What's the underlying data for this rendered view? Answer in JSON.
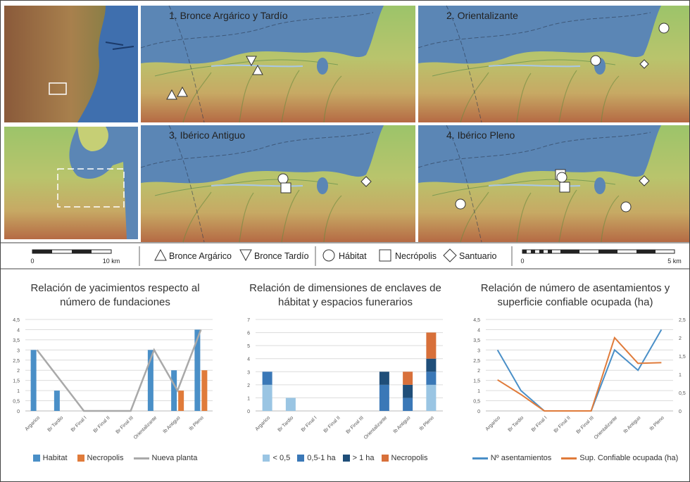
{
  "maps": {
    "panel_titles": [
      "1. Bronce Argárico y Tardío",
      "2. Orientalizante",
      "3. Ibérico Antiguo",
      "4. Ibérico Pleno"
    ],
    "scale_left": {
      "start": "0",
      "end": "10 km"
    },
    "scale_right": {
      "start": "0",
      "end": "5 km"
    },
    "legend": [
      {
        "icon": "triangle-up-icon",
        "label": "Bronce Argárico"
      },
      {
        "icon": "triangle-down-icon",
        "label": "Bronce Tardío"
      },
      {
        "icon": "circle-icon",
        "label": "Hábitat"
      },
      {
        "icon": "square-icon",
        "label": "Necrópolis"
      },
      {
        "icon": "diamond-icon",
        "label": "Santuario"
      }
    ],
    "colors": {
      "sea": "#5b86b5",
      "land_low": "#7fb25c",
      "land_mid": "#c9c06a",
      "land_high": "#b0583a"
    }
  },
  "chart_data": [
    {
      "type": "bar",
      "title": "Relación de yacimientos respecto al número de fundaciones",
      "title_lines": [
        "Relación de yacimientos respecto al",
        "número de fundaciones"
      ],
      "categories": [
        "Argarico",
        "Br Tardio",
        "Br Final I",
        "Br Final II",
        "Br Final III",
        "Orientalizante",
        "Ib Antiguo",
        "Ib Pleno"
      ],
      "ylim": [
        0,
        4.5
      ],
      "yticks": [
        "0",
        "0,5",
        "1",
        "1,5",
        "2",
        "2,5",
        "3",
        "3,5",
        "4",
        "4,5"
      ],
      "series": [
        {
          "name": "Habitat",
          "kind": "bar",
          "color": "#4a8fc7",
          "values": [
            3,
            1,
            0,
            0,
            0,
            3,
            2,
            4
          ]
        },
        {
          "name": "Necropolis",
          "kind": "bar",
          "color": "#e07b3a",
          "values": [
            0,
            0,
            0,
            0,
            0,
            0,
            1,
            2
          ]
        },
        {
          "name": "Nueva planta",
          "kind": "line",
          "color": "#a9a9a9",
          "values": [
            3,
            1.5,
            0,
            0,
            0,
            3,
            1,
            4
          ]
        }
      ]
    },
    {
      "type": "bar",
      "stacked": true,
      "title": "Relación de dimensiones de enclaves de hábitat y espacios funerarios",
      "title_lines": [
        "Relación de dimensiones de enclaves de",
        "hábitat y espacios funerarios"
      ],
      "categories": [
        "Argarico",
        "Br Tardio",
        "Br Final I",
        "Br Final II",
        "Br Final III",
        "Orientalizante",
        "Ib Antiguo",
        "Ib Pleno"
      ],
      "ylim": [
        0,
        7
      ],
      "yticks": [
        "0",
        "1",
        "2",
        "3",
        "4",
        "5",
        "6",
        "7"
      ],
      "series": [
        {
          "name": "< 0,5",
          "color": "#9ac5e3",
          "values": [
            2,
            1,
            0,
            0,
            0,
            0,
            0,
            2
          ]
        },
        {
          "name": "0,5-1 ha",
          "color": "#3a78b7",
          "values": [
            1,
            0,
            0,
            0,
            0,
            2,
            1,
            1
          ]
        },
        {
          "name": "> 1 ha",
          "color": "#1f4e79",
          "values": [
            0,
            0,
            0,
            0,
            0,
            1,
            1,
            1
          ]
        },
        {
          "name": "Necropolis",
          "color": "#d8703a",
          "values": [
            0,
            0,
            0,
            0,
            0,
            0,
            1,
            2
          ]
        }
      ]
    },
    {
      "type": "line",
      "title": "Relación de número de asentamientos y superficie confiable ocupada (ha)",
      "title_lines": [
        "Relación de número de asentamientos y",
        "superficie confiable ocupada (ha)"
      ],
      "categories": [
        "Argarico",
        "Br Tardio",
        "Br Final I",
        "Br Final II",
        "Br Final III",
        "Orientalizante",
        "Ib Antiguo",
        "Ib Pleno"
      ],
      "ylim": [
        0,
        4.5
      ],
      "y2lim": [
        0,
        2.5
      ],
      "yticks": [
        "0",
        "0,5",
        "1",
        "1,5",
        "2",
        "2,5",
        "3",
        "3,5",
        "4",
        "4,5"
      ],
      "y2ticks": [
        "0",
        "0,5",
        "1",
        "1,5",
        "2",
        "2,5"
      ],
      "series": [
        {
          "name": "Nº asentamientos",
          "axis": "left",
          "color": "#4a8fc7",
          "values": [
            3,
            1,
            0,
            0,
            0,
            3,
            2,
            4
          ]
        },
        {
          "name": "Sup. Confiable ocupada (ha)",
          "axis": "right",
          "color": "#e07b3a",
          "values": [
            0.85,
            0.45,
            0,
            0,
            0,
            2.0,
            1.3,
            1.32
          ]
        }
      ]
    }
  ]
}
